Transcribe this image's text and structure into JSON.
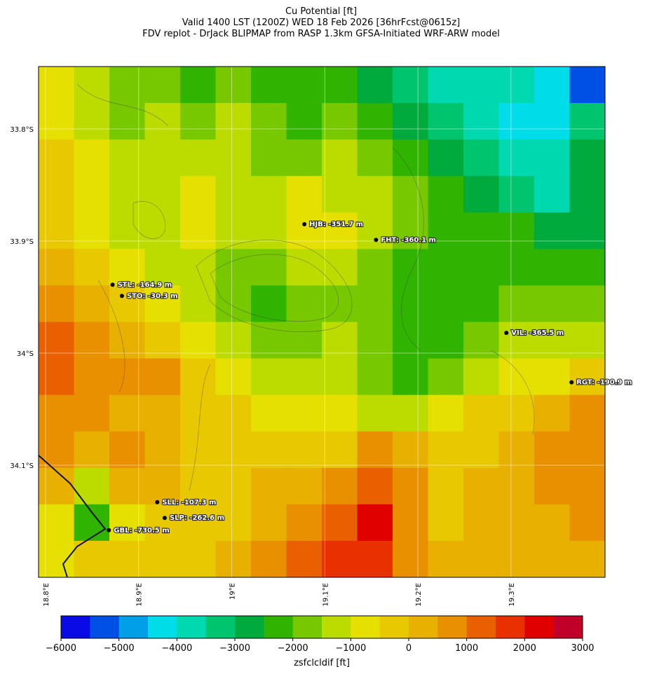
{
  "title": [
    "Cu Potential [ft]",
    "Valid 1400 LST (1200Z) WED 18 Feb 2026 [36hrFcst@0615z]",
    "FDV replot - DrJack BLIPMAP from RASP 1.3km GFSA-Initiated WRF-ARW model"
  ],
  "map": {
    "xlim": [
      18.7925,
      19.401
    ],
    "ylim": [
      -34.2,
      -33.7444
    ],
    "grid": true,
    "xticks": [
      {
        "value": 18.8,
        "label": "18.8°E"
      },
      {
        "value": 18.9,
        "label": "18.9°E"
      },
      {
        "value": 19.0,
        "label": "19°E"
      },
      {
        "value": 19.1,
        "label": "19.1°E"
      },
      {
        "value": 19.2,
        "label": "19.2°E"
      },
      {
        "value": 19.3,
        "label": "19.3°E"
      }
    ],
    "yticks": [
      {
        "value": -33.8,
        "label": "33.8°S"
      },
      {
        "value": -33.9,
        "label": "33.9°S"
      },
      {
        "value": -34.0,
        "label": "34°S"
      },
      {
        "value": -34.1,
        "label": "34.1°S"
      }
    ]
  },
  "field": {
    "values": [
      [
        -750,
        -1250,
        -1750,
        -1750,
        -2250,
        -1750,
        -2250,
        -2250,
        -2250,
        -2750,
        -3250,
        -3750,
        -3750,
        -3750,
        -4250,
        -5250
      ],
      [
        -750,
        -1250,
        -1750,
        -1250,
        -1750,
        -1250,
        -1750,
        -2250,
        -1750,
        -2250,
        -2750,
        -3250,
        -3750,
        -4250,
        -4250,
        -3250
      ],
      [
        -250,
        -750,
        -1250,
        -1250,
        -1250,
        -1250,
        -1750,
        -1750,
        -1250,
        -1750,
        -2250,
        -2750,
        -3250,
        -3750,
        -3750,
        -2750
      ],
      [
        -250,
        -750,
        -1250,
        -1250,
        -750,
        -1250,
        -1250,
        -750,
        -1250,
        -1250,
        -1750,
        -2250,
        -2750,
        -3250,
        -3750,
        -2750
      ],
      [
        -250,
        -750,
        -1250,
        -1250,
        -750,
        -1250,
        -1250,
        -750,
        -750,
        -1250,
        -1750,
        -2250,
        -2250,
        -2250,
        -2750,
        -2750
      ],
      [
        250,
        -250,
        -750,
        -1250,
        -1250,
        -1750,
        -1750,
        -1250,
        -1250,
        -1750,
        -2250,
        -2250,
        -2250,
        -2250,
        -2250,
        -2250
      ],
      [
        750,
        250,
        -250,
        -750,
        -1250,
        -1750,
        -2250,
        -1750,
        -1750,
        -1750,
        -2250,
        -2250,
        -2250,
        -1750,
        -1750,
        -1750
      ],
      [
        1250,
        750,
        250,
        -250,
        -750,
        -1250,
        -1750,
        -1750,
        -1250,
        -1750,
        -2250,
        -2250,
        -1750,
        -1250,
        -1250,
        -1250
      ],
      [
        1250,
        750,
        750,
        750,
        -250,
        -750,
        -1250,
        -1250,
        -1250,
        -1750,
        -2250,
        -1750,
        -1250,
        -750,
        -750,
        -250
      ],
      [
        750,
        750,
        250,
        250,
        -250,
        -250,
        -750,
        -750,
        -750,
        -1250,
        -1250,
        -750,
        -250,
        -250,
        250,
        750
      ],
      [
        750,
        250,
        750,
        250,
        -250,
        -250,
        -250,
        -250,
        -250,
        750,
        250,
        -250,
        -250,
        250,
        750,
        750
      ],
      [
        250,
        -1250,
        250,
        250,
        -250,
        -250,
        250,
        250,
        750,
        1250,
        750,
        -250,
        250,
        250,
        750,
        750
      ],
      [
        -750,
        -2250,
        -750,
        -250,
        -250,
        -250,
        250,
        750,
        1250,
        2250,
        750,
        -250,
        250,
        250,
        250,
        750
      ],
      [
        -750,
        -250,
        -250,
        -250,
        -250,
        250,
        750,
        1250,
        1750,
        1750,
        750,
        250,
        250,
        250,
        250,
        250
      ]
    ]
  },
  "stations": [
    {
      "label": "HJB: -351.7 m",
      "lon": 19.078,
      "lat": -33.885
    },
    {
      "label": "FHT: -360.1 m",
      "lon": 19.155,
      "lat": -33.899
    },
    {
      "label": "STL: -164.9 m",
      "lon": 18.872,
      "lat": -33.939
    },
    {
      "label": "STO: -30.3 m",
      "lon": 18.882,
      "lat": -33.949
    },
    {
      "label": "VIL: -365.5 m",
      "lon": 19.295,
      "lat": -33.982
    },
    {
      "label": "RGT: -190.9 m",
      "lon": 19.365,
      "lat": -34.026
    },
    {
      "label": "SLL: -107.3 m",
      "lon": 18.92,
      "lat": -34.133
    },
    {
      "label": "SLP: -262.6 m",
      "lon": 18.928,
      "lat": -34.147
    },
    {
      "label": "GBL: -730.5 m",
      "lon": 18.868,
      "lat": -34.158
    }
  ],
  "colorbar": {
    "label": "zsfclcldif [ft]",
    "bounds": [
      -6000,
      -5500,
      -5000,
      -4500,
      -4000,
      -3500,
      -3000,
      -2500,
      -2000,
      -1500,
      -1000,
      -500,
      0,
      500,
      1000,
      1500,
      2000,
      2500,
      3000
    ],
    "colors": [
      "#0a0ae6",
      "#0050e6",
      "#00a0e8",
      "#00dce8",
      "#00d8b0",
      "#00c46e",
      "#00aa3c",
      "#30b400",
      "#78c800",
      "#bcdc00",
      "#e6e000",
      "#e8c800",
      "#e8b000",
      "#e89000",
      "#e86000",
      "#e83000",
      "#e00000",
      "#c00028"
    ],
    "ticks": [
      {
        "value": -6000,
        "label": "−6000"
      },
      {
        "value": -5000,
        "label": "−5000"
      },
      {
        "value": -4000,
        "label": "−4000"
      },
      {
        "value": -3000,
        "label": "−3000"
      },
      {
        "value": -2000,
        "label": "−2000"
      },
      {
        "value": -1000,
        "label": "−1000"
      },
      0,
      1000,
      2000,
      3000
    ]
  }
}
